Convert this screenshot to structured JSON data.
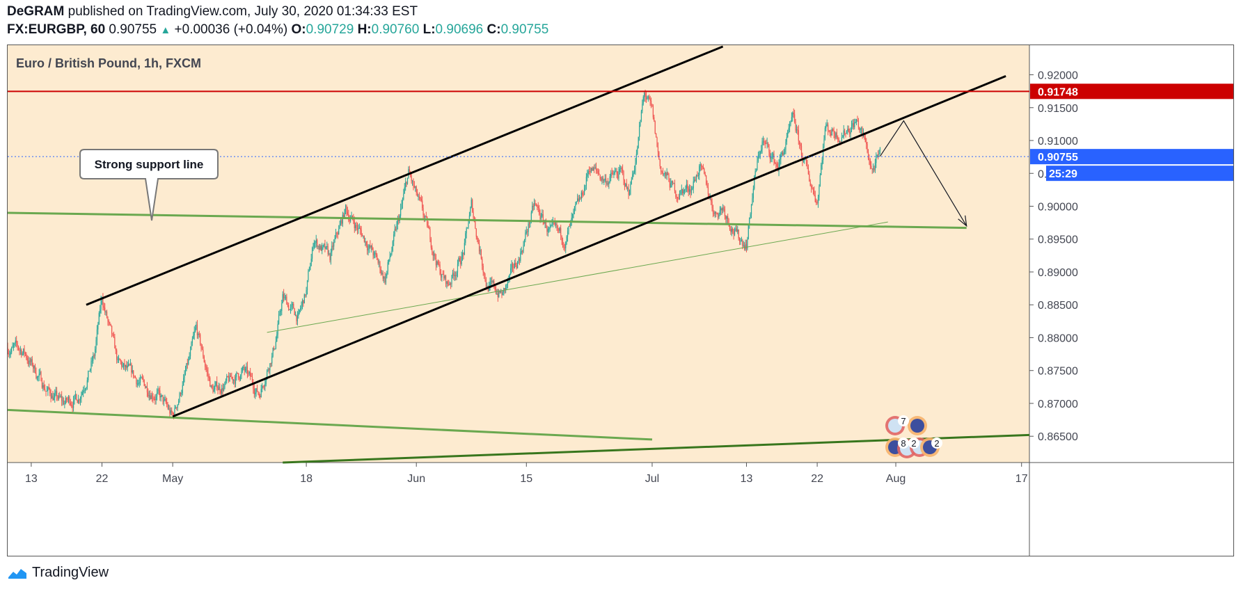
{
  "header": {
    "author": "DeGRAM",
    "published": "published on TradingView.com, July 30, 2020 01:34:33 EST",
    "symbol": "FX:EURGBP, 60",
    "last": "0.90755",
    "change_arrow": "▲",
    "change": "+0.00036 (+0.04%)",
    "o_label": "O:",
    "o": "0.90729",
    "h_label": "H:",
    "h": "0.90760",
    "l_label": "L:",
    "l": "0.90696",
    "c_label": "C:",
    "c": "0.90755"
  },
  "footer": {
    "brand": "TradingView",
    "logo_icon": "tradingview-logo-icon"
  },
  "colors": {
    "background": "#fdebd0",
    "up": "#26a69a",
    "down": "#ef5350",
    "resistance": "#cc0000",
    "support": "#6aa84f",
    "channel": "#000000",
    "price_label": "#2962ff"
  },
  "chart_data": {
    "type": "candlestick",
    "title": "Euro / British Pound, 1h, FXCM",
    "y_ticks": [
      "0.92000",
      "0.91500",
      "0.91000",
      "0.90500",
      "0.90000",
      "0.89500",
      "0.89000",
      "0.88500",
      "0.88000",
      "0.87500",
      "0.87000",
      "0.86500"
    ],
    "ylim": [
      0.861,
      0.9245
    ],
    "x_ticks": [
      {
        "label": "13",
        "date": "2020-04-13"
      },
      {
        "label": "22",
        "date": "2020-04-22"
      },
      {
        "label": "May",
        "date": "2020-05-01"
      },
      {
        "label": "18",
        "date": "2020-05-18"
      },
      {
        "label": "Jun",
        "date": "2020-06-01"
      },
      {
        "label": "15",
        "date": "2020-06-15"
      },
      {
        "label": "Jul",
        "date": "2020-07-01"
      },
      {
        "label": "13",
        "date": "2020-07-13"
      },
      {
        "label": "22",
        "date": "2020-07-22"
      },
      {
        "label": "Aug",
        "date": "2020-08-01"
      },
      {
        "label": "17",
        "date": "2020-08-17"
      }
    ],
    "xlim": [
      "2020-04-10",
      "2020-08-18"
    ],
    "price_path": [
      [
        "2020-04-10",
        0.8785
      ],
      [
        "2020-04-12",
        0.878
      ],
      [
        "2020-04-15",
        0.872
      ],
      [
        "2020-04-17",
        0.87
      ],
      [
        "2020-04-19",
        0.871
      ],
      [
        "2020-04-21",
        0.877
      ],
      [
        "2020-04-22",
        0.886
      ],
      [
        "2020-04-24",
        0.876
      ],
      [
        "2020-04-27",
        0.873
      ],
      [
        "2020-04-29",
        0.8715
      ],
      [
        "2020-05-01",
        0.8678
      ],
      [
        "2020-05-03",
        0.876
      ],
      [
        "2020-05-04",
        0.881
      ],
      [
        "2020-05-06",
        0.872
      ],
      [
        "2020-05-08",
        0.873
      ],
      [
        "2020-05-10",
        0.875
      ],
      [
        "2020-05-12",
        0.8715
      ],
      [
        "2020-05-14",
        0.879
      ],
      [
        "2020-05-15",
        0.886
      ],
      [
        "2020-05-17",
        0.883
      ],
      [
        "2020-05-18",
        0.887
      ],
      [
        "2020-05-19",
        0.895
      ],
      [
        "2020-05-21",
        0.892
      ],
      [
        "2020-05-23",
        0.8995
      ],
      [
        "2020-05-26",
        0.894
      ],
      [
        "2020-05-28",
        0.889
      ],
      [
        "2020-05-30",
        0.899
      ],
      [
        "2020-05-31",
        0.905
      ],
      [
        "2020-06-02",
        0.898
      ],
      [
        "2020-06-04",
        0.89
      ],
      [
        "2020-06-05",
        0.888
      ],
      [
        "2020-06-07",
        0.893
      ],
      [
        "2020-06-08",
        0.9
      ],
      [
        "2020-06-10",
        0.888
      ],
      [
        "2020-06-12",
        0.8865
      ],
      [
        "2020-06-14",
        0.892
      ],
      [
        "2020-06-15",
        0.896
      ],
      [
        "2020-06-16",
        0.9
      ],
      [
        "2020-06-18",
        0.896
      ],
      [
        "2020-06-20",
        0.895
      ],
      [
        "2020-06-22",
        0.901
      ],
      [
        "2020-06-23",
        0.906
      ],
      [
        "2020-06-25",
        0.904
      ],
      [
        "2020-06-27",
        0.905
      ],
      [
        "2020-06-28",
        0.902
      ],
      [
        "2020-06-29",
        0.908
      ],
      [
        "2020-06-30",
        0.9172
      ],
      [
        "2020-07-01",
        0.914
      ],
      [
        "2020-07-02",
        0.906
      ],
      [
        "2020-07-04",
        0.902
      ],
      [
        "2020-07-06",
        0.903
      ],
      [
        "2020-07-07",
        0.906
      ],
      [
        "2020-07-09",
        0.899
      ],
      [
        "2020-07-10",
        0.9
      ],
      [
        "2020-07-12",
        0.895
      ],
      [
        "2020-07-13",
        0.8945
      ],
      [
        "2020-07-14",
        0.904
      ],
      [
        "2020-07-15",
        0.91
      ],
      [
        "2020-07-17",
        0.906
      ],
      [
        "2020-07-19",
        0.913
      ],
      [
        "2020-07-20",
        0.908
      ],
      [
        "2020-07-21",
        0.904
      ],
      [
        "2020-07-22",
        0.901
      ],
      [
        "2020-07-23",
        0.912
      ],
      [
        "2020-07-25",
        0.911
      ],
      [
        "2020-07-27",
        0.913
      ],
      [
        "2020-07-28",
        0.91
      ],
      [
        "2020-07-29",
        0.9055
      ],
      [
        "2020-07-30",
        0.9075
      ]
    ],
    "drawings": {
      "resistance": {
        "price": 0.91748,
        "label": "0.91748"
      },
      "current": {
        "price": 0.90755,
        "label": "0.90755",
        "countdown": "25:29"
      },
      "channel_upper": [
        [
          "2020-04-20",
          0.885
        ],
        [
          "2020-07-10",
          0.9243
        ]
      ],
      "channel_lower": [
        [
          "2020-05-01",
          0.868
        ],
        [
          "2020-08-15",
          0.9198
        ]
      ],
      "support_green": [
        [
          "2020-04-10",
          0.899
        ],
        [
          "2020-08-10",
          0.8967
        ]
      ],
      "support_green_low": [
        [
          "2020-04-10",
          0.869
        ],
        [
          "2020-07-01",
          0.8645
        ]
      ],
      "support_dark": [
        [
          "2020-05-15",
          0.861
        ],
        [
          "2020-08-18",
          0.8652
        ]
      ],
      "thin_trend": [
        [
          "2020-05-13",
          0.8808
        ],
        [
          "2020-07-31",
          0.8976
        ]
      ],
      "forecast": [
        [
          "2020-07-30",
          0.9076
        ],
        [
          "2020-08-02",
          0.913
        ],
        [
          "2020-08-10",
          0.897
        ]
      ]
    },
    "annotation": "Strong support line",
    "event_badges": [
      "7",
      "8",
      "2",
      "2"
    ]
  }
}
